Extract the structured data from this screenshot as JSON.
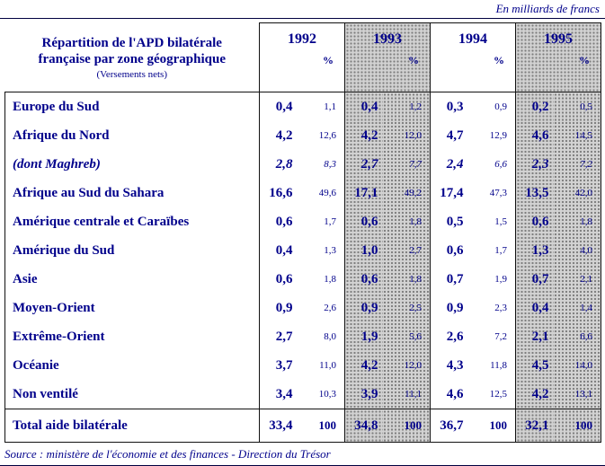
{
  "meta": {
    "unit_note": "En milliards de francs",
    "source": "Source : ministère de l'économie et des finances - Direction du Trésor"
  },
  "colors": {
    "navy": "#00008b",
    "shade_base": "#d2d2d2",
    "shade_dot": "#7e7e7e",
    "border": "#111111"
  },
  "table": {
    "title_line1": "Répartition de l'APD bilatérale",
    "title_line2": "française par zone géographique",
    "title_line3": "(Versements nets)",
    "percent_label": "%",
    "years": [
      "1992",
      "1993",
      "1994",
      "1995"
    ],
    "shaded_year_indexes": [
      1,
      3
    ],
    "rows": [
      {
        "label": "Europe du Sud",
        "cells": [
          [
            "0,4",
            "1,1"
          ],
          [
            "0,4",
            "1,2"
          ],
          [
            "0,3",
            "0,9"
          ],
          [
            "0,2",
            "0,5"
          ]
        ]
      },
      {
        "label": "Afrique du Nord",
        "cells": [
          [
            "4,2",
            "12,6"
          ],
          [
            "4,2",
            "12,0"
          ],
          [
            "4,7",
            "12,9"
          ],
          [
            "4,6",
            "14,5"
          ]
        ]
      },
      {
        "label": "(dont Maghreb)",
        "italic": true,
        "cells": [
          [
            "2,8",
            "8,3"
          ],
          [
            "2,7",
            "7,7"
          ],
          [
            "2,4",
            "6,6"
          ],
          [
            "2,3",
            "7,2"
          ]
        ]
      },
      {
        "label": "Afrique au Sud du Sahara",
        "cells": [
          [
            "16,6",
            "49,6"
          ],
          [
            "17,1",
            "49,2"
          ],
          [
            "17,4",
            "47,3"
          ],
          [
            "13,5",
            "42,0"
          ]
        ]
      },
      {
        "label": "Amérique centrale et Caraïbes",
        "cells": [
          [
            "0,6",
            "1,7"
          ],
          [
            "0,6",
            "1,8"
          ],
          [
            "0,5",
            "1,5"
          ],
          [
            "0,6",
            "1,8"
          ]
        ]
      },
      {
        "label": "Amérique du Sud",
        "cells": [
          [
            "0,4",
            "1,3"
          ],
          [
            "1,0",
            "2,7"
          ],
          [
            "0,6",
            "1,7"
          ],
          [
            "1,3",
            "4,0"
          ]
        ]
      },
      {
        "label": "Asie",
        "cells": [
          [
            "0,6",
            "1,8"
          ],
          [
            "0,6",
            "1,8"
          ],
          [
            "0,7",
            "1,9"
          ],
          [
            "0,7",
            "2,1"
          ]
        ]
      },
      {
        "label": "Moyen-Orient",
        "cells": [
          [
            "0,9",
            "2,6"
          ],
          [
            "0,9",
            "2,5"
          ],
          [
            "0,9",
            "2,3"
          ],
          [
            "0,4",
            "1,4"
          ]
        ]
      },
      {
        "label": "Extrême-Orient",
        "cells": [
          [
            "2,7",
            "8,0"
          ],
          [
            "1,9",
            "5,6"
          ],
          [
            "2,6",
            "7,2"
          ],
          [
            "2,1",
            "6,6"
          ]
        ]
      },
      {
        "label": "Océanie",
        "cells": [
          [
            "3,7",
            "11,0"
          ],
          [
            "4,2",
            "12,0"
          ],
          [
            "4,3",
            "11,8"
          ],
          [
            "4,5",
            "14,0"
          ]
        ]
      },
      {
        "label": "Non ventilé",
        "cells": [
          [
            "3,4",
            "10,3"
          ],
          [
            "3,9",
            "11,1"
          ],
          [
            "4,6",
            "12,5"
          ],
          [
            "4,2",
            "13,1"
          ]
        ]
      },
      {
        "label": "Total aide bilatérale",
        "total": true,
        "cells": [
          [
            "33,4",
            "100"
          ],
          [
            "34,8",
            "100"
          ],
          [
            "36,7",
            "100"
          ],
          [
            "32,1",
            "100"
          ]
        ]
      }
    ]
  }
}
